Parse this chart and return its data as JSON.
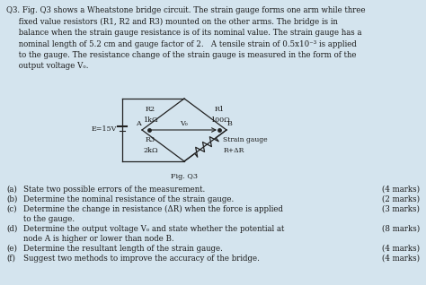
{
  "background_color": "#d4e4ee",
  "body_text": [
    "Q3. Fig. Q3 shows a Wheatstone bridge circuit. The strain gauge forms one arm while three",
    "     fixed value resistors (R1, R2 and R3) mounted on the other arms. The bridge is in",
    "     balance when the strain gauge resistance is of its nominal value. The strain gauge has a",
    "     nominal length of 5.2 cm and gauge factor of 2.   A tensile strain of 0.5x10⁻³ is applied",
    "     to the gauge. The resistance change of the strain gauge is measured in the form of the",
    "     output voltage Vₒ."
  ],
  "circuit": {
    "r2_label": "R2",
    "r2_val": "1kΩ",
    "r1_label": "R1",
    "r1_val": "100Ω",
    "r3_label": "R3",
    "r3_val": "2kΩ",
    "strain_label": "Strain gauge",
    "strain_val": "R+ΔR",
    "voltage_label": "E=15V",
    "vo_label": "Vₒ",
    "node_a": "A",
    "node_b": "B",
    "fig_label": "Fig. Q3"
  },
  "questions": [
    {
      "letter": "(a)",
      "text": "State two possible errors of the measurement.",
      "marks": "(4 marks)",
      "indent": false
    },
    {
      "letter": "(b)",
      "text": "Determine the nominal resistance of the strain gauge.",
      "marks": "(2 marks)",
      "indent": false
    },
    {
      "letter": "(c)",
      "text": "Determine the change in resistance (ΔR) when the force is applied",
      "marks": "(3 marks)",
      "indent": false,
      "cont": "to the gauge."
    },
    {
      "letter": "(d)",
      "text": "Determine the output voltage Vₒ and state whether the potential at",
      "marks": "(8 marks)",
      "indent": false,
      "cont": "node A is higher or lower than node B."
    },
    {
      "letter": "(e)",
      "text": "Determine the resultant length of the strain gauge.",
      "marks": "(4 marks)",
      "indent": false
    },
    {
      "letter": "(f)",
      "text": "Suggest two methods to improve the accuracy of the bridge.",
      "marks": "(4 marks)",
      "indent": false
    }
  ],
  "body_fontsize": 6.2,
  "circuit_fontsize": 5.8,
  "q_fontsize": 6.2,
  "text_color": "#1a1a1a"
}
